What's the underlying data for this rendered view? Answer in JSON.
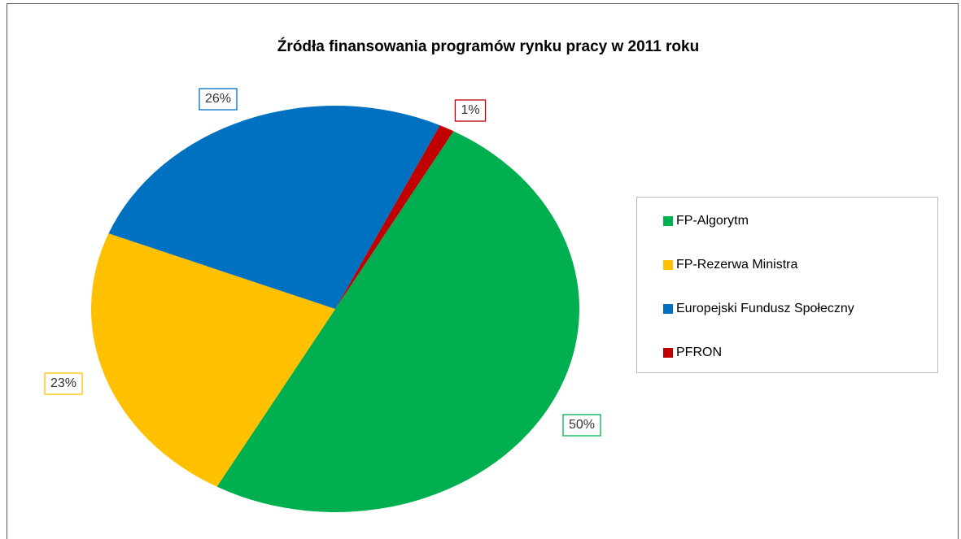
{
  "chart_data": {
    "type": "pie",
    "title": "Źródła finansowania  programów rynku pracy w 2011  roku",
    "categories": [
      "FP-Algorytm",
      "FP-Rezerwa Ministra",
      "Europejski Fundusz Społeczny",
      "PFRON"
    ],
    "values": [
      50,
      23,
      26,
      1
    ],
    "value_labels": [
      "50%",
      "23%",
      "26%",
      "1%"
    ],
    "colors": [
      "#00b050",
      "#ffc000",
      "#0070c0",
      "#c00000"
    ],
    "legend": "right"
  }
}
